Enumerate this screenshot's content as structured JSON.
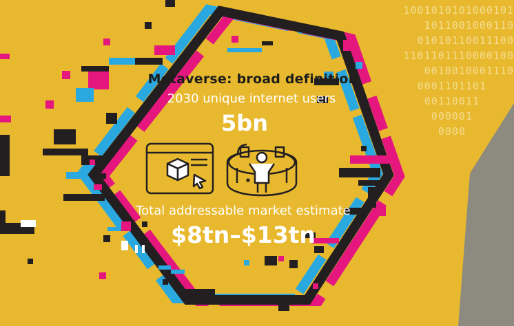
{
  "colors": {
    "background": "#e8b92e",
    "black": "#231f20",
    "cyan": "#2aa9e0",
    "magenta": "#e5177f",
    "white": "#ffffff",
    "grey": "#8d8a80"
  },
  "binary_lines": [
    "1001010101000101",
    "1011001000110",
    "01010110011100",
    "1101101110000100",
    "0010010001110",
    "0001101101",
    "00110011",
    "000001",
    "0000"
  ],
  "icons": [
    "cube-window-icon",
    "vr-person-icon"
  ],
  "content": {
    "heading": "Metaverse: broad definition",
    "users_label": "2030 unique internet users",
    "users_value": "5bn",
    "market_label": "Total addressable market estimate",
    "market_value": "$8tn–$13tn"
  }
}
